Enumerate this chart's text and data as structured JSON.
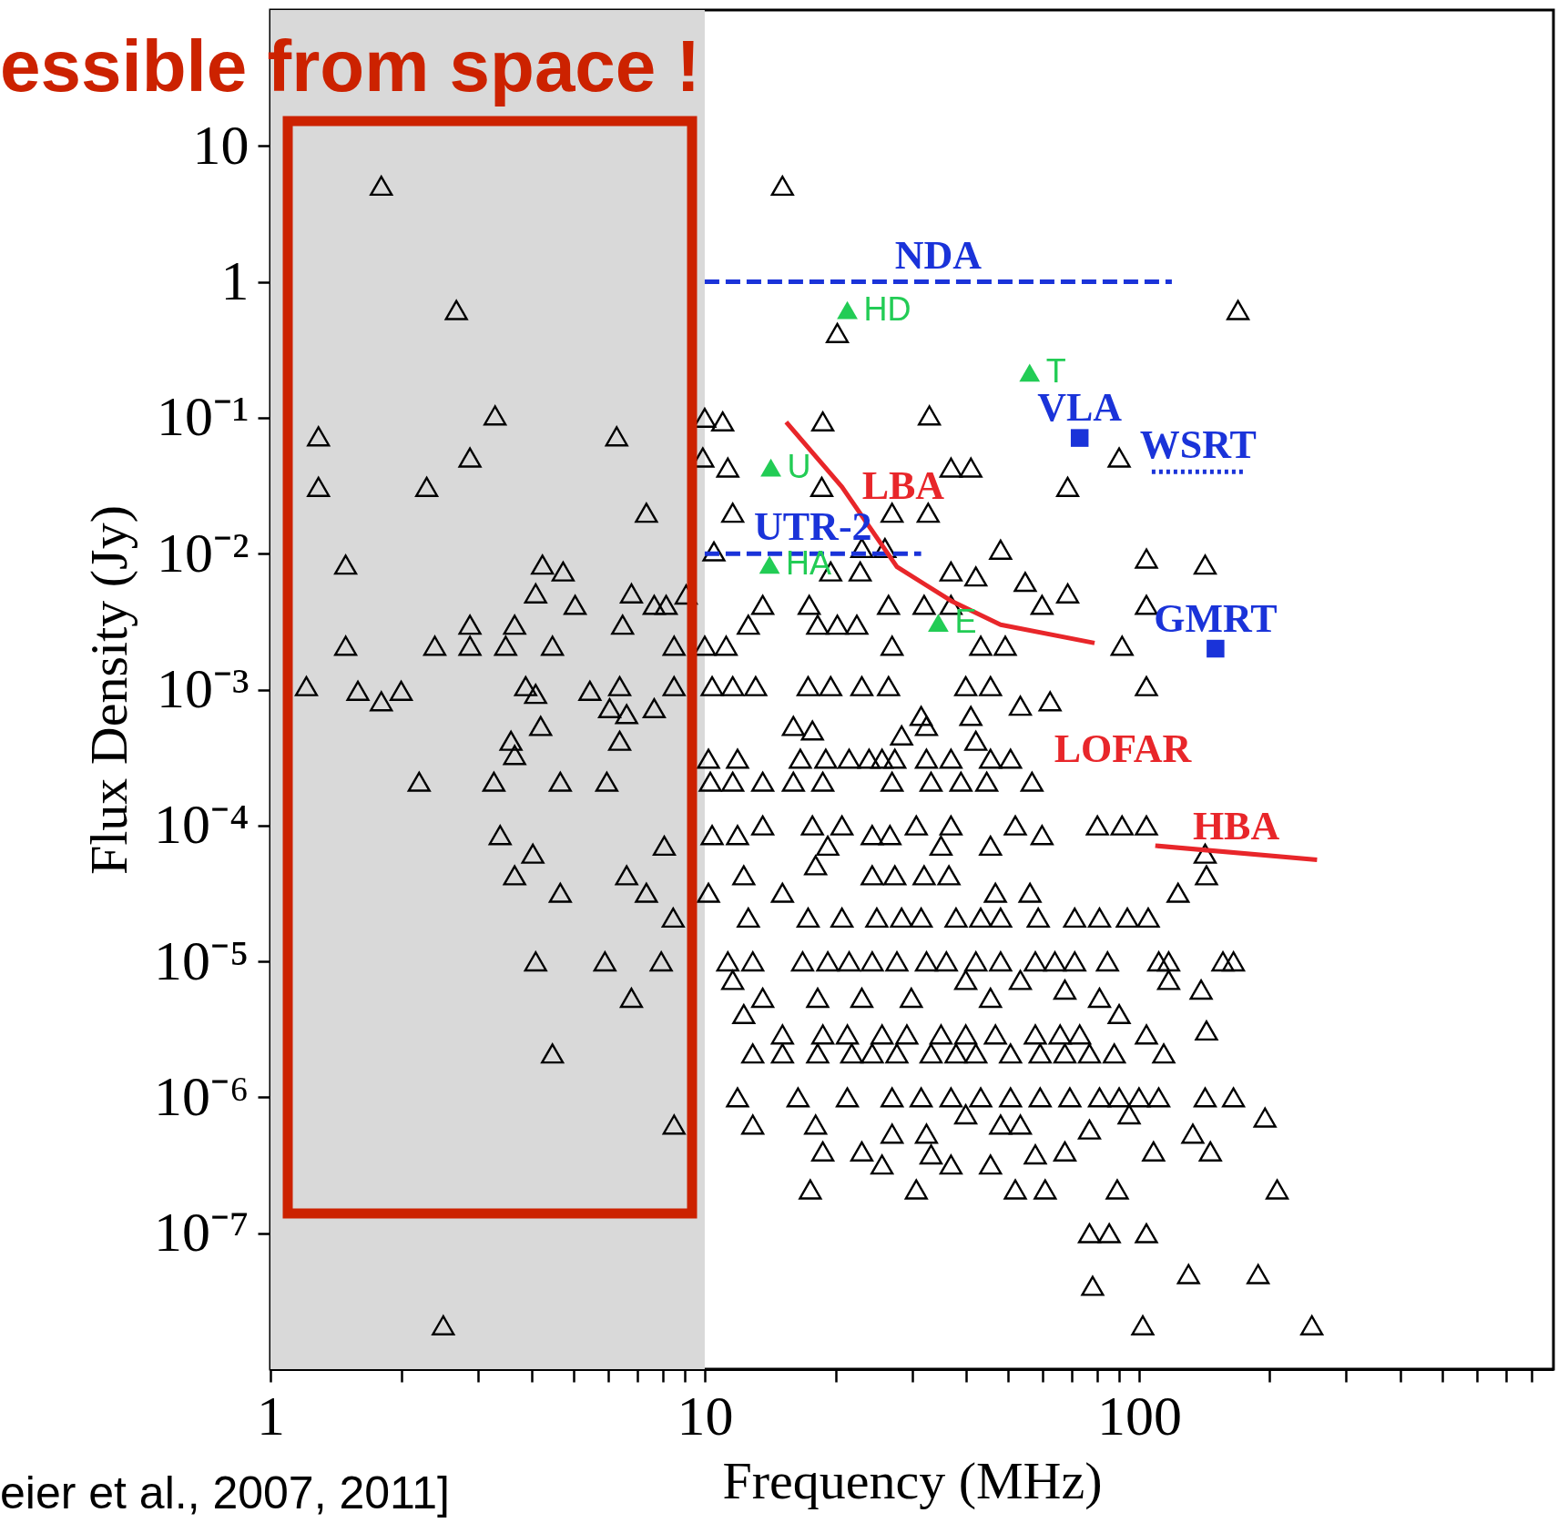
{
  "chart_data": {
    "type": "scatter",
    "title": "essible from space !",
    "xlabel": "Frequency (MHz)",
    "ylabel": "Flux Density (Jy)",
    "annotations": [
      "eier et al., 2007, 2011]",
      "LOFAR"
    ],
    "log": "xy",
    "xlim": [
      1,
      900
    ],
    "ylim": [
      1e-08,
      100
    ],
    "xticks": [
      1,
      {
        "value": 2,
        "label": null
      },
      {
        "value": 3,
        "label": null
      },
      {
        "value": 4,
        "label": null
      },
      {
        "value": 5,
        "label": null
      },
      {
        "value": 6,
        "label": null
      },
      {
        "value": 7,
        "label": null
      },
      {
        "value": 8,
        "label": null
      },
      {
        "value": 9,
        "label": null
      },
      10,
      {
        "value": 20,
        "label": null
      },
      {
        "value": 30,
        "label": null
      },
      {
        "value": 40,
        "label": null
      },
      {
        "value": 50,
        "label": null
      },
      {
        "value": 60,
        "label": null
      },
      {
        "value": 70,
        "label": null
      },
      {
        "value": 80,
        "label": null
      },
      {
        "value": 90,
        "label": null
      },
      100,
      {
        "value": 200,
        "label": null
      },
      {
        "value": 300,
        "label": null
      },
      {
        "value": 400,
        "label": null
      },
      {
        "value": 500,
        "label": null
      },
      {
        "value": 600,
        "label": null
      },
      {
        "value": 700,
        "label": null
      },
      {
        "value": 800,
        "label": null
      }
    ],
    "yticks": [
      10,
      1,
      {
        "value": 0.1,
        "label": "10⁻¹"
      },
      {
        "value": 0.01,
        "label": "10⁻²"
      },
      {
        "value": 0.001,
        "label": "10⁻³"
      },
      {
        "value": 0.0001,
        "label": "10⁻⁴"
      },
      {
        "value": 1e-05,
        "label": "10⁻⁵"
      },
      {
        "value": 1e-06,
        "label": "10⁻⁶"
      },
      {
        "value": 1e-07,
        "label": "10⁻⁷"
      }
    ],
    "bands": [
      {
        "axis": "x",
        "from": 1,
        "to": 10,
        "color": "#d9d9d9"
      }
    ],
    "series": [
      {
        "color": "#000000",
        "marker": "triangle",
        "x": [
          1.8,
          2.68,
          1.29,
          1.29,
          3.29,
          2.88,
          2.29,
          6.27,
          7.34,
          1.49,
          4.23,
          4.72,
          4.08,
          5.03,
          6.78,
          7.65,
          8.15,
          6.47,
          2.88,
          3.65,
          1.49,
          2.39,
          2.88,
          3.48,
          4.46,
          1.21,
          1.59,
          1.8,
          2.0,
          3.87,
          4.08,
          5.44,
          6.37,
          6.04,
          6.61,
          7.65,
          8.5,
          8.5,
          3.58,
          3.65,
          4.19,
          6.37,
          2.2,
          3.27,
          4.65,
          5.95,
          3.38,
          4.02,
          3.65,
          4.65,
          6.61,
          7.34,
          8.07,
          8.46,
          4.08,
          5.89,
          7.94,
          6.78,
          4.46,
          8.5,
          2.5,
          9.06,
          10.0,
          11.0,
          15.1,
          18.7,
          32.9,
          20.2,
          169,
          9.9,
          11.3,
          36.9,
          41.0,
          90,
          18.6,
          68.5,
          11.6,
          27.0,
          32.7,
          23.0,
          26.0,
          10.5,
          19.5,
          22.8,
          36.9,
          42.1,
          48.0,
          54.7,
          104,
          142,
          68.5,
          104,
          59.8,
          26.5,
          13.6,
          12.6,
          17.4,
          20.2,
          22.4,
          18.2,
          32.0,
          36.9,
          43.2,
          49.2,
          91.4,
          27.0,
          11.2,
          10.0,
          10.4,
          11.6,
          13.1,
          17.3,
          19.5,
          23.0,
          26.5,
          39.9,
          45.5,
          104,
          62.4,
          53.3,
          31.5,
          41.0,
          16.0,
          17.7,
          28.4,
          32.4,
          42.1,
          10.2,
          11.9,
          16.6,
          19.0,
          21.5,
          23.9,
          25.6,
          27.4,
          32.4,
          36.9,
          45.5,
          50.6,
          56.7,
          10.3,
          11.6,
          13.6,
          16.0,
          18.7,
          27.0,
          33.2,
          38.9,
          44.6,
          10.4,
          11.9,
          13.6,
          17.7,
          20.7,
          24.3,
          26.7,
          30.7,
          36.9,
          51.9,
          59.8,
          80.2,
          91.4,
          104,
          45.5,
          19.2,
          35.0,
          10.2,
          12.3,
          15.1,
          18.0,
          24.3,
          27.4,
          32.0,
          36.5,
          46.7,
          56.1,
          143,
          123,
          142,
          12.6,
          17.3,
          20.7,
          24.9,
          28.4,
          31.5,
          37.9,
          43.2,
          48.0,
          58.6,
          71.1,
          81.1,
          94.0,
          105,
          11.3,
          12.9,
          16.8,
          19.2,
          21.5,
          24.3,
          27.7,
          32.4,
          36.0,
          42.1,
          48.0,
          57.7,
          64.0,
          71.1,
          84.6,
          111,
          117,
          156,
          165,
          11.6,
          13.6,
          18.2,
          23.0,
          29.9,
          39.9,
          45.5,
          53.3,
          67.5,
          81.1,
          117,
          139,
          12.3,
          90,
          143,
          15.1,
          18.7,
          21.3,
          25.6,
          29.2,
          35.0,
          39.9,
          46.7,
          57.7,
          65.8,
          73.0,
          104,
          12.9,
          15.1,
          18.2,
          21.8,
          24.3,
          27.7,
          33.2,
          37.9,
          42.1,
          50.6,
          59.2,
          67.5,
          76.9,
          87.7,
          114,
          11.9,
          16.4,
          21.3,
          27.0,
          31.5,
          36.9,
          43.2,
          50.6,
          59.2,
          69.3,
          81.1,
          90.0,
          100,
          111,
          142,
          165,
          12.9,
          18.0,
          27.0,
          32.4,
          39.9,
          48.0,
          53.3,
          76.9,
          94.9,
          133,
          195,
          18.7,
          23.0,
          25.6,
          33.2,
          36.9,
          45.5,
          57.7,
          67.5,
          108,
          146,
          17.5,
          30.7,
          51.9,
          60.8,
          89.1,
          208,
          76.9,
          85.4,
          104,
          78.2,
          130,
          188,
          102,
          250
        ],
        "values": [
          5.1,
          0.62,
          0.073,
          0.031,
          0.104,
          0.051,
          0.031,
          0.073,
          0.02,
          0.0083,
          0.0083,
          0.0074,
          0.0051,
          0.0042,
          0.0051,
          0.0042,
          0.0042,
          0.003,
          0.003,
          0.003,
          0.0021,
          0.0021,
          0.0021,
          0.0021,
          0.0021,
          0.00106,
          0.00098,
          0.00082,
          0.00098,
          0.00106,
          0.00093,
          0.00098,
          0.00106,
          0.00073,
          0.00066,
          0.00073,
          0.00106,
          0.0021,
          0.00042,
          0.00033,
          0.00054,
          0.00042,
          0.00021,
          0.00021,
          0.00021,
          0.00021,
          8.5e-05,
          6.2e-05,
          4.3e-05,
          3.2e-05,
          4.3e-05,
          3.2e-05,
          7.1e-05,
          2.1e-05,
          1e-05,
          1e-05,
          1e-05,
          5.4e-06,
          2.1e-06,
          6.3e-07,
          2.1e-08,
          0.005,
          0.1,
          0.094,
          5.1,
          0.094,
          0.104,
          0.42,
          0.62,
          0.051,
          0.043,
          0.043,
          0.043,
          0.051,
          0.031,
          0.031,
          0.02,
          0.02,
          0.02,
          0.011,
          0.011,
          0.0104,
          0.0074,
          0.0074,
          0.0074,
          0.0068,
          0.0107,
          0.0062,
          0.0092,
          0.0083,
          0.0051,
          0.0042,
          0.0042,
          0.0042,
          0.0042,
          0.003,
          0.0042,
          0.003,
          0.003,
          0.003,
          0.0042,
          0.0042,
          0.0021,
          0.0021,
          0.0021,
          0.0021,
          0.0021,
          0.0021,
          0.00106,
          0.00106,
          0.00106,
          0.00106,
          0.00106,
          0.00106,
          0.00106,
          0.00106,
          0.00106,
          0.00106,
          0.00082,
          0.00076,
          0.00064,
          0.00064,
          0.00054,
          0.0005,
          0.00046,
          0.00054,
          0.00042,
          0.00031,
          0.00031,
          0.00031,
          0.00031,
          0.00031,
          0.00031,
          0.00031,
          0.00031,
          0.00031,
          0.00031,
          0.00031,
          0.00031,
          0.00021,
          0.00021,
          0.00021,
          0.00021,
          0.00021,
          0.00021,
          0.00021,
          0.00021,
          0.00021,
          0.00021,
          8.5e-05,
          8.5e-05,
          0.0001,
          0.0001,
          0.0001,
          8.5e-05,
          8.5e-05,
          0.0001,
          0.0001,
          0.0001,
          8.5e-05,
          0.0001,
          0.0001,
          0.0001,
          7.1e-05,
          7.1e-05,
          7.1e-05,
          3.2e-05,
          4.3e-05,
          3.2e-05,
          5.1e-05,
          4.3e-05,
          4.3e-05,
          4.3e-05,
          4.3e-05,
          3.2e-05,
          3.2e-05,
          4.3e-05,
          3.2e-05,
          6.2e-05,
          2.1e-05,
          2.1e-05,
          2.1e-05,
          2.1e-05,
          2.1e-05,
          2.1e-05,
          2.1e-05,
          2.1e-05,
          2.1e-05,
          2.1e-05,
          2.1e-05,
          2.1e-05,
          2.1e-05,
          2.1e-05,
          1e-05,
          1e-05,
          1e-05,
          1e-05,
          1e-05,
          1e-05,
          1e-05,
          1e-05,
          1e-05,
          1e-05,
          1e-05,
          1e-05,
          1e-05,
          1e-05,
          1e-05,
          1e-05,
          1e-05,
          1e-05,
          1e-05,
          7.3e-06,
          5.4e-06,
          5.4e-06,
          5.4e-06,
          5.4e-06,
          7.3e-06,
          5.4e-06,
          7.3e-06,
          6.2e-06,
          5.4e-06,
          7.3e-06,
          6.2e-06,
          4.1e-06,
          4.1e-06,
          3.1e-06,
          2.9e-06,
          2.9e-06,
          2.9e-06,
          2.9e-06,
          2.9e-06,
          2.9e-06,
          2.9e-06,
          2.9e-06,
          2.9e-06,
          2.9e-06,
          2.9e-06,
          2.9e-06,
          2.1e-06,
          2.1e-06,
          2.1e-06,
          2.1e-06,
          2.1e-06,
          2.1e-06,
          2.1e-06,
          2.1e-06,
          2.1e-06,
          2.1e-06,
          2.1e-06,
          2.1e-06,
          2.1e-06,
          2.1e-06,
          2.1e-06,
          1e-06,
          1e-06,
          1e-06,
          1e-06,
          1e-06,
          1e-06,
          1e-06,
          1e-06,
          1e-06,
          1e-06,
          1e-06,
          1e-06,
          1e-06,
          1e-06,
          1e-06,
          1e-06,
          6.3e-07,
          6.3e-07,
          5.4e-07,
          5.4e-07,
          7.5e-07,
          6.3e-07,
          6.3e-07,
          5.8e-07,
          7.5e-07,
          5.4e-07,
          7.1e-07,
          4e-07,
          4e-07,
          3.2e-07,
          3.8e-07,
          3.2e-07,
          3.2e-07,
          3.8e-07,
          4e-07,
          4e-07,
          4e-07,
          2.1e-07,
          2.1e-07,
          2.1e-07,
          2.1e-07,
          2.1e-07,
          2.1e-07,
          1e-07,
          1e-07,
          1e-07,
          4.1e-08,
          5e-08,
          5e-08,
          2.1e-08,
          2.1e-08
        ]
      },
      {
        "type": "line",
        "name": "NDA",
        "color": "#1a33d9",
        "line_style": "dashed",
        "x": [
          10,
          119
        ],
        "values": [
          1,
          1
        ]
      },
      {
        "type": "line",
        "name": "UTR-2",
        "color": "#1a33d9",
        "line_style": "dashed",
        "x": [
          10,
          31.5
        ],
        "values": [
          0.01,
          0.01
        ]
      },
      {
        "type": "line",
        "name": "WSRT",
        "color": "#1a33d9",
        "line_style": "dotted",
        "x": [
          107,
          175
        ],
        "values": [
          0.04,
          0.04
        ]
      },
      {
        "type": "line",
        "name": "LBA",
        "color": "#e8262a",
        "line_style": "solid",
        "x": [
          15.4,
          20.7,
          27.7,
          36.9,
          48,
          79
        ],
        "values": [
          0.093,
          0.031,
          0.008,
          0.0045,
          0.003,
          0.0022
        ]
      },
      {
        "type": "line",
        "name": "HBA",
        "color": "#e8262a",
        "line_style": "solid",
        "x": [
          109,
          257
        ],
        "values": [
          7.1e-05,
          5.6e-05
        ]
      },
      {
        "type": "scatter",
        "name": "VLA",
        "color": "#1a33d9",
        "marker": "square",
        "x": [
          73
        ],
        "values": [
          0.071
        ]
      },
      {
        "type": "scatter",
        "name": "GMRT",
        "color": "#1a33d9",
        "marker": "square",
        "x": [
          150
        ],
        "values": [
          0.002
        ]
      },
      {
        "type": "scatter",
        "name": "HD",
        "color": "#22cc55",
        "marker": "triangle",
        "x": [
          21.3
        ],
        "values": [
          0.62
        ]
      },
      {
        "type": "scatter",
        "name": "T",
        "color": "#22cc55",
        "marker": "triangle",
        "x": [
          56
        ],
        "values": [
          0.215
        ]
      },
      {
        "type": "scatter",
        "name": "U",
        "color": "#22cc55",
        "marker": "triangle",
        "x": [
          14.2
        ],
        "values": [
          0.043
        ]
      },
      {
        "type": "scatter",
        "name": "HA",
        "color": "#22cc55",
        "marker": "triangle",
        "x": [
          14.1
        ],
        "values": [
          0.0083
        ]
      },
      {
        "type": "scatter",
        "name": "E",
        "color": "#22cc55",
        "marker": "triangle",
        "x": [
          34.5
        ],
        "values": [
          0.0031
        ]
      }
    ]
  }
}
